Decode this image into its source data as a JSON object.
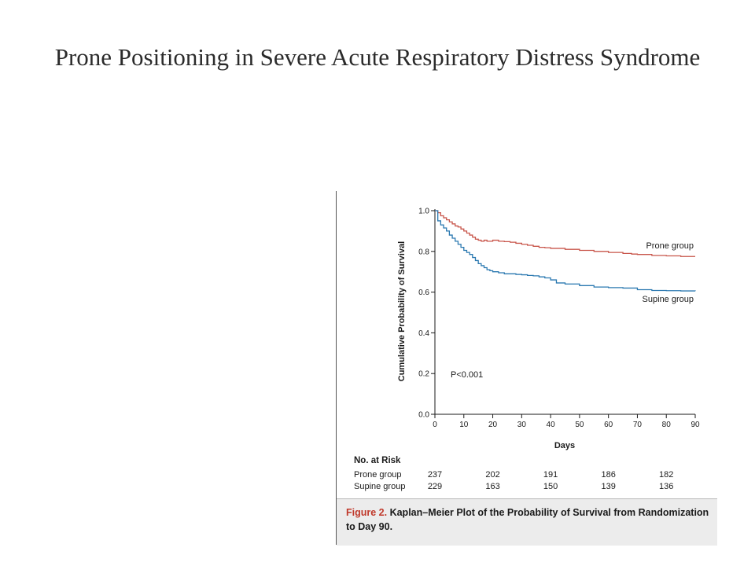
{
  "slide": {
    "title": "Prone Positioning in Severe Acute Respiratory Distress Syndrome"
  },
  "chart_data": {
    "type": "line",
    "subtype": "kaplan-meier step",
    "xlabel": "Days",
    "ylabel": "Cumulative Probability of Survival",
    "xlim": [
      0,
      90
    ],
    "ylim": [
      0,
      1.0
    ],
    "x_ticks": [
      "0",
      "10",
      "20",
      "30",
      "40",
      "50",
      "60",
      "70",
      "80",
      "90"
    ],
    "y_ticks": [
      "0.0",
      "0.2",
      "0.4",
      "0.6",
      "0.8",
      "1.0"
    ],
    "grid": false,
    "annotation": "P<0.001",
    "series": [
      {
        "name": "Prone group",
        "color": "#c8554a",
        "x": [
          0,
          1,
          2,
          3,
          4,
          5,
          6,
          7,
          8,
          9,
          10,
          11,
          12,
          13,
          14,
          15,
          16,
          17,
          18,
          20,
          22,
          24,
          26,
          28,
          30,
          32,
          34,
          36,
          38,
          40,
          45,
          50,
          55,
          60,
          65,
          68,
          70,
          75,
          80,
          85,
          90
        ],
        "y": [
          1.0,
          0.99,
          0.975,
          0.965,
          0.955,
          0.945,
          0.935,
          0.925,
          0.92,
          0.91,
          0.9,
          0.89,
          0.88,
          0.87,
          0.86,
          0.855,
          0.85,
          0.855,
          0.85,
          0.855,
          0.85,
          0.848,
          0.845,
          0.84,
          0.835,
          0.83,
          0.825,
          0.82,
          0.818,
          0.815,
          0.81,
          0.805,
          0.8,
          0.795,
          0.79,
          0.787,
          0.785,
          0.78,
          0.778,
          0.775,
          0.775
        ]
      },
      {
        "name": "Supine group",
        "color": "#2a78b0",
        "x": [
          0,
          1,
          2,
          3,
          4,
          5,
          6,
          7,
          8,
          9,
          10,
          11,
          12,
          13,
          14,
          15,
          16,
          17,
          18,
          19,
          20,
          22,
          24,
          26,
          28,
          30,
          32,
          34,
          36,
          38,
          40,
          42,
          45,
          50,
          55,
          60,
          65,
          70,
          75,
          80,
          85,
          90
        ],
        "y": [
          1.0,
          0.95,
          0.93,
          0.915,
          0.9,
          0.88,
          0.865,
          0.85,
          0.835,
          0.82,
          0.805,
          0.795,
          0.785,
          0.77,
          0.755,
          0.74,
          0.73,
          0.72,
          0.71,
          0.705,
          0.7,
          0.695,
          0.69,
          0.69,
          0.687,
          0.685,
          0.682,
          0.68,
          0.675,
          0.67,
          0.66,
          0.645,
          0.64,
          0.632,
          0.625,
          0.622,
          0.62,
          0.612,
          0.608,
          0.607,
          0.606,
          0.605
        ]
      }
    ],
    "risk_table": {
      "header": "No. at Risk",
      "columns_days": [
        0,
        20,
        40,
        60,
        80
      ],
      "rows": [
        {
          "name": "Prone group",
          "values": [
            "237",
            "202",
            "191",
            "186",
            "182"
          ]
        },
        {
          "name": "Supine group",
          "values": [
            "229",
            "163",
            "150",
            "139",
            "136"
          ]
        }
      ]
    },
    "caption": {
      "figure_label": "Figure 2.",
      "text": "Kaplan–Meier Plot of the Probability of Survival from Randomization to Day 90."
    }
  }
}
